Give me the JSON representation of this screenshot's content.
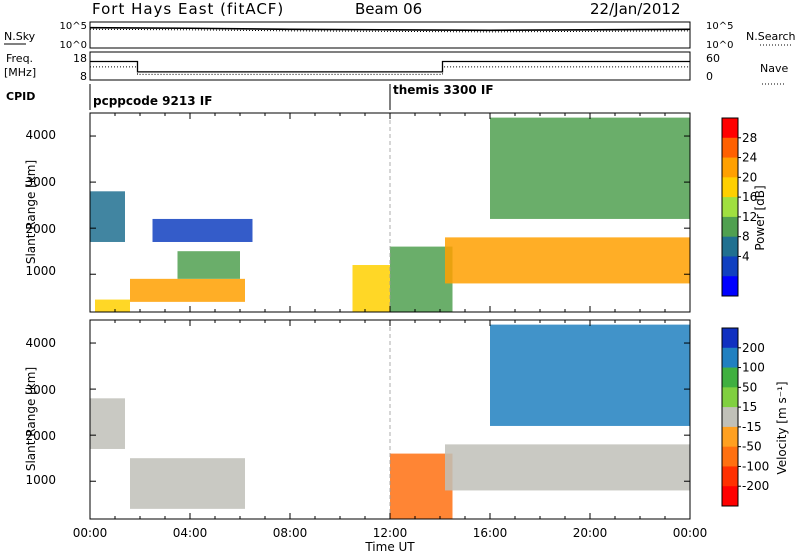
{
  "header": {
    "station": "Fort Hays East (fitACF)",
    "beam": "Beam 06",
    "date": "22/Jan/2012"
  },
  "noise_panel": {
    "left_label": "N.Sky",
    "left_ticks": [
      "10^5",
      "10^0"
    ],
    "right_ticks": [
      "10^5",
      "10^0"
    ],
    "right_label": "N.Search"
  },
  "freq_panel": {
    "left_label": "Freq.",
    "left_unit": "[MHz]",
    "left_ticks": [
      "18",
      "8"
    ],
    "right_ticks": [
      "60",
      "0"
    ],
    "right_label": "Nave"
  },
  "cpid_panel": {
    "label": "CPID",
    "modes": [
      {
        "name": "pcppcode 9213 IF",
        "start_hour": 0
      },
      {
        "name": "themis 3300 IF",
        "start_hour": 12
      }
    ]
  },
  "x_axis": {
    "title": "Time UT",
    "ticks": [
      "00:00",
      "04:00",
      "08:00",
      "12:00",
      "16:00",
      "20:00",
      "00:00"
    ]
  },
  "power_panel": {
    "ylabel": "Slant Range [km]",
    "yticks": [
      "4000",
      "3000",
      "2000",
      "1000"
    ],
    "colorbar": {
      "label": "Power [dB]",
      "ticks": [
        "28",
        "24",
        "20",
        "16",
        "12",
        "8",
        "4"
      ],
      "colors": [
        "#ff0000",
        "#ff6000",
        "#ffa000",
        "#ffd000",
        "#a0e040",
        "#50a050",
        "#207090",
        "#1040c0",
        "#0000ff"
      ]
    }
  },
  "velocity_panel": {
    "ylabel": "Slant Range [km]",
    "yticks": [
      "4000",
      "3000",
      "2000",
      "1000"
    ],
    "colorbar": {
      "label": "Velocity [m s⁻¹]",
      "ticks": [
        "200",
        "100",
        "50",
        "15",
        "-15",
        "-50",
        "-100",
        "-200"
      ],
      "colors": [
        "#1030c0",
        "#2080c0",
        "#40b040",
        "#80d040",
        "#c0c0b8",
        "#ffa020",
        "#ff7010",
        "#ff3000",
        "#ff0000"
      ]
    }
  },
  "chart_data": {
    "type": "heatmap",
    "title": "Fort Hays East (fitACF) Beam 06 22/Jan/2012",
    "xlabel": "Time UT",
    "ylabel": "Slant Range [km]",
    "xlim_hours": [
      0,
      24
    ],
    "ylim_km": [
      180,
      4500
    ],
    "noise_series": [
      {
        "name": "N.Sky",
        "x_hours": [
          0,
          4,
          8,
          12,
          16,
          20,
          24
        ],
        "log10_values": [
          3.9,
          3.8,
          3.6,
          3.5,
          3.4,
          3.5,
          3.6
        ]
      },
      {
        "name": "N.Search",
        "x_hours": [
          0,
          4,
          8,
          12,
          16,
          20,
          24
        ],
        "log10_values": [
          3.6,
          3.5,
          3.3,
          3.2,
          3.1,
          3.2,
          3.3
        ]
      }
    ],
    "frequency_MHz": {
      "x_hours": [
        0,
        1.9,
        1.9,
        14.1,
        14.1,
        24
      ],
      "values": [
        14.6,
        14.6,
        10.9,
        10.9,
        14.6,
        14.6
      ]
    },
    "nave": {
      "x_hours": [
        0,
        1.9,
        1.9,
        14.1,
        14.1,
        24
      ],
      "values": [
        28,
        28,
        12,
        12,
        28,
        28
      ]
    },
    "power_regions": [
      {
        "t0": 0.0,
        "t1": 1.4,
        "r0": 1700,
        "r1": 2800,
        "power_dB": 8
      },
      {
        "t0": 0.2,
        "t1": 1.6,
        "r0": 180,
        "r1": 450,
        "power_dB": 22
      },
      {
        "t0": 1.6,
        "t1": 6.2,
        "r0": 400,
        "r1": 900,
        "power_dB": 24
      },
      {
        "t0": 3.5,
        "t1": 6.0,
        "r0": 900,
        "r1": 1500,
        "power_dB": 14
      },
      {
        "t0": 2.5,
        "t1": 6.5,
        "r0": 1700,
        "r1": 2200,
        "power_dB": 6
      },
      {
        "t0": 10.5,
        "t1": 12.0,
        "r0": 180,
        "r1": 1200,
        "power_dB": 20
      },
      {
        "t0": 12.0,
        "t1": 14.5,
        "r0": 180,
        "r1": 1600,
        "power_dB": 14
      },
      {
        "t0": 14.2,
        "t1": 24.0,
        "r0": 800,
        "r1": 1800,
        "power_dB": 26
      },
      {
        "t0": 16.0,
        "t1": 24.0,
        "r0": 2200,
        "r1": 4400,
        "power_dB": 12
      }
    ],
    "velocity_regions": [
      {
        "t0": 0.0,
        "t1": 1.4,
        "r0": 1700,
        "r1": 2800,
        "velocity_ms": 0
      },
      {
        "t0": 1.6,
        "t1": 6.2,
        "r0": 400,
        "r1": 1500,
        "velocity_ms": -5
      },
      {
        "t0": 12.0,
        "t1": 14.5,
        "r0": 180,
        "r1": 1600,
        "velocity_ms": -60
      },
      {
        "t0": 14.2,
        "t1": 24.0,
        "r0": 800,
        "r1": 1800,
        "velocity_ms": 0
      },
      {
        "t0": 16.0,
        "t1": 24.0,
        "r0": 2200,
        "r1": 4400,
        "velocity_ms": 150
      }
    ]
  }
}
